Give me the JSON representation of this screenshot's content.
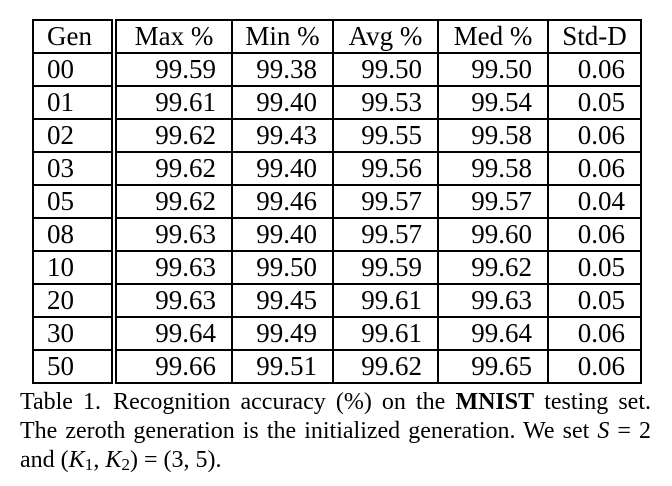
{
  "page": {
    "background": "#ffffff",
    "text_color": "#000000",
    "border_color": "#000000"
  },
  "table": {
    "columns": [
      "Gen",
      "Max %",
      "Min %",
      "Avg %",
      "Med %",
      "Std-D"
    ],
    "rows": [
      [
        "00",
        "99.59",
        "99.38",
        "99.50",
        "99.50",
        "0.06"
      ],
      [
        "01",
        "99.61",
        "99.40",
        "99.53",
        "99.54",
        "0.05"
      ],
      [
        "02",
        "99.62",
        "99.43",
        "99.55",
        "99.58",
        "0.06"
      ],
      [
        "03",
        "99.62",
        "99.40",
        "99.56",
        "99.58",
        "0.06"
      ],
      [
        "05",
        "99.62",
        "99.46",
        "99.57",
        "99.57",
        "0.04"
      ],
      [
        "08",
        "99.63",
        "99.40",
        "99.57",
        "99.60",
        "0.06"
      ],
      [
        "10",
        "99.63",
        "99.50",
        "99.59",
        "99.62",
        "0.05"
      ],
      [
        "20",
        "99.63",
        "99.45",
        "99.61",
        "99.63",
        "0.05"
      ],
      [
        "30",
        "99.64",
        "99.49",
        "99.61",
        "99.64",
        "0.06"
      ],
      [
        "50",
        "99.66",
        "99.51",
        "99.62",
        "99.65",
        "0.06"
      ]
    ]
  },
  "caption": {
    "lines": [
      [
        {
          "text": "Table 1."
        },
        {
          "text": " Recognition accuracy (%) on the "
        },
        {
          "text": "MNIST",
          "bold": true
        },
        {
          "text": " testing set."
        }
      ],
      [
        {
          "text": "The zeroth generation is the initialized generation. We set "
        },
        {
          "text": "S",
          "italic": true
        },
        {
          "text": " = 2"
        }
      ],
      [
        {
          "text": "and ("
        },
        {
          "text": "K",
          "italic": true
        },
        {
          "text": "1",
          "sub": true
        },
        {
          "text": ", "
        },
        {
          "text": "K",
          "italic": true
        },
        {
          "text": "2",
          "sub": true
        },
        {
          "text": ") = (3, 5)."
        }
      ]
    ]
  },
  "chart_data": {
    "type": "table",
    "title": "Table 1. Recognition accuracy (%) on the MNIST testing set.",
    "columns": [
      "Gen",
      "Max %",
      "Min %",
      "Avg %",
      "Med %",
      "Std-D"
    ],
    "rows": [
      [
        "00",
        "99.59",
        "99.38",
        "99.50",
        "99.50",
        "0.06"
      ],
      [
        "01",
        "99.61",
        "99.40",
        "99.53",
        "99.54",
        "0.05"
      ],
      [
        "02",
        "99.62",
        "99.43",
        "99.55",
        "99.58",
        "0.06"
      ],
      [
        "03",
        "99.62",
        "99.40",
        "99.56",
        "99.58",
        "0.06"
      ],
      [
        "05",
        "99.62",
        "99.46",
        "99.57",
        "99.57",
        "0.04"
      ],
      [
        "08",
        "99.63",
        "99.40",
        "99.57",
        "99.60",
        "0.06"
      ],
      [
        "10",
        "99.63",
        "99.50",
        "99.59",
        "99.62",
        "0.05"
      ],
      [
        "20",
        "99.63",
        "99.45",
        "99.61",
        "99.63",
        "0.05"
      ],
      [
        "30",
        "99.64",
        "99.49",
        "99.61",
        "99.64",
        "0.06"
      ],
      [
        "50",
        "99.66",
        "99.51",
        "99.62",
        "99.65",
        "0.06"
      ]
    ]
  }
}
